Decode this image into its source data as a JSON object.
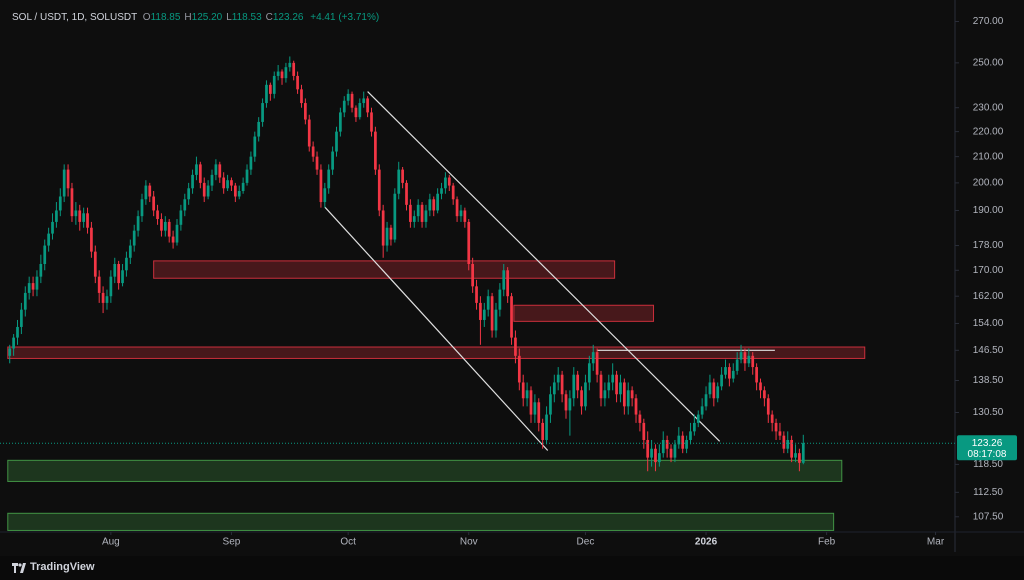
{
  "header": {
    "symbol": "SOL / USDT, 1D, SOLUSDT",
    "ohlc": [
      {
        "key": "O",
        "value": "118.85"
      },
      {
        "key": "H",
        "value": "125.20"
      },
      {
        "key": "L",
        "value": "118.53"
      },
      {
        "key": "C",
        "value": "123.26"
      }
    ],
    "change": "+4.41 (+3.71%)"
  },
  "footer": {
    "brand": "TradingView"
  },
  "chart_data": {
    "type": "candlestick",
    "log_scale": true,
    "up_color": "#089981",
    "down_color": "#f23645",
    "countdown": "08:17:08",
    "xlim": [
      -2.5,
      243
    ],
    "ylim": [
      104.5,
      281
    ],
    "xticks": [
      {
        "value": 26,
        "label": "Aug"
      },
      {
        "value": 57,
        "label": "Sep"
      },
      {
        "value": 87,
        "label": "Oct"
      },
      {
        "value": 118,
        "label": "Nov"
      },
      {
        "value": 148,
        "label": "Dec"
      },
      {
        "value": 179,
        "label": "2026"
      },
      {
        "value": 210,
        "label": "Feb"
      },
      {
        "value": 238,
        "label": "Mar"
      }
    ],
    "yticks": [
      {
        "value": 270,
        "label": "270.00"
      },
      {
        "value": 250,
        "label": "250.00"
      },
      {
        "value": 230,
        "label": "230.00"
      },
      {
        "value": 220,
        "label": "220.00"
      },
      {
        "value": 210,
        "label": "210.00"
      },
      {
        "value": 200,
        "label": "200.00"
      },
      {
        "value": 190,
        "label": "190.00"
      },
      {
        "value": 178,
        "label": "178.00"
      },
      {
        "value": 170,
        "label": "170.00"
      },
      {
        "value": 162,
        "label": "162.00"
      },
      {
        "value": 154,
        "label": "154.00"
      },
      {
        "value": 146.5,
        "label": "146.50"
      },
      {
        "value": 138.5,
        "label": "138.50"
      },
      {
        "value": 130.5,
        "label": "130.50"
      },
      {
        "value": 118.5,
        "label": "118.50"
      },
      {
        "value": 112.5,
        "label": "112.50"
      },
      {
        "value": 107.5,
        "label": "107.50"
      }
    ],
    "zones": [
      {
        "color": "#f23645",
        "from": [
          37,
          173
        ],
        "to": [
          155.5,
          167.5
        ]
      },
      {
        "color": "#f23645",
        "from": [
          129.6,
          159.3
        ],
        "to": [
          165.5,
          154.6
        ]
      },
      {
        "color": "#f23645",
        "from": [
          -0.5,
          147.4
        ],
        "to": [
          219.8,
          144.3
        ]
      },
      {
        "color": "#4caf50",
        "from": [
          -0.5,
          119.4
        ],
        "to": [
          213.9,
          114.8
        ]
      },
      {
        "color": "#4caf50",
        "from": [
          -0.5,
          108.2
        ],
        "to": [
          211.8,
          104.8
        ]
      }
    ],
    "lines": [
      {
        "color": "#e0e0e0",
        "from": [
          92,
          237
        ],
        "to": [
          182.5,
          123.7
        ]
      },
      {
        "color": "#e0e0e0",
        "from": [
          81,
          191.2
        ],
        "to": [
          138.3,
          121.6
        ]
      },
      {
        "color": "#e0e0e0",
        "from": [
          151,
          146.5
        ],
        "to": [
          196.7,
          146.5
        ]
      }
    ],
    "candles": [
      [
        145,
        148,
        143,
        147
      ],
      [
        147,
        151,
        145,
        150
      ],
      [
        150,
        155,
        148,
        153
      ],
      [
        153,
        160,
        151,
        158
      ],
      [
        158,
        165,
        156,
        163
      ],
      [
        163,
        168,
        161,
        166
      ],
      [
        166,
        168,
        162,
        164
      ],
      [
        164,
        170,
        162,
        168
      ],
      [
        168,
        175,
        166,
        172
      ],
      [
        172,
        180,
        170,
        178
      ],
      [
        178,
        184,
        176,
        182
      ],
      [
        182,
        189,
        180,
        186
      ],
      [
        186,
        193,
        184,
        190
      ],
      [
        190,
        198,
        188,
        195
      ],
      [
        195,
        207,
        193,
        205
      ],
      [
        205,
        207,
        195,
        198
      ],
      [
        198,
        200,
        186,
        188
      ],
      [
        188,
        193,
        185,
        190
      ],
      [
        190,
        192,
        183,
        186
      ],
      [
        186,
        191,
        184,
        189
      ],
      [
        189,
        191,
        182,
        184
      ],
      [
        184,
        186,
        174,
        176
      ],
      [
        176,
        178,
        166,
        168
      ],
      [
        168,
        170,
        160,
        163
      ],
      [
        163,
        165,
        157,
        160
      ],
      [
        160,
        164,
        158,
        162
      ],
      [
        162,
        170,
        160,
        168
      ],
      [
        168,
        174,
        166,
        172
      ],
      [
        172,
        173,
        164,
        166
      ],
      [
        166,
        172,
        165,
        170
      ],
      [
        170,
        176,
        168,
        174
      ],
      [
        174,
        180,
        172,
        178
      ],
      [
        178,
        185,
        176,
        183
      ],
      [
        183,
        190,
        181,
        188
      ],
      [
        188,
        196,
        186,
        194
      ],
      [
        194,
        201,
        192,
        199
      ],
      [
        199,
        200,
        193,
        195
      ],
      [
        195,
        197,
        188,
        190
      ],
      [
        190,
        192,
        185,
        187
      ],
      [
        187,
        189,
        181,
        183
      ],
      [
        183,
        188,
        181,
        186
      ],
      [
        186,
        187,
        179,
        181
      ],
      [
        181,
        183,
        177,
        179
      ],
      [
        179,
        187,
        178,
        185
      ],
      [
        185,
        192,
        183,
        190
      ],
      [
        190,
        196,
        188,
        194
      ],
      [
        194,
        200,
        192,
        198
      ],
      [
        198,
        205,
        196,
        203
      ],
      [
        203,
        210,
        201,
        207
      ],
      [
        207,
        208,
        198,
        200
      ],
      [
        200,
        202,
        193,
        195
      ],
      [
        195,
        201,
        194,
        199
      ],
      [
        199,
        205,
        197,
        203
      ],
      [
        203,
        209,
        201,
        207
      ],
      [
        207,
        208,
        200,
        202
      ],
      [
        202,
        204,
        196,
        198
      ],
      [
        198,
        203,
        197,
        201
      ],
      [
        201,
        202,
        197,
        199
      ],
      [
        199,
        200,
        193,
        195
      ],
      [
        195,
        199,
        194,
        197
      ],
      [
        197,
        202,
        196,
        200
      ],
      [
        200,
        207,
        199,
        205
      ],
      [
        205,
        212,
        203,
        210
      ],
      [
        210,
        220,
        208,
        218
      ],
      [
        218,
        226,
        216,
        224
      ],
      [
        224,
        234,
        222,
        232
      ],
      [
        232,
        242,
        230,
        240
      ],
      [
        240,
        241,
        233,
        236
      ],
      [
        236,
        246,
        234,
        244
      ],
      [
        244,
        249,
        242,
        246
      ],
      [
        246,
        247,
        240,
        243
      ],
      [
        243,
        250,
        241,
        248
      ],
      [
        248,
        253,
        246,
        250
      ],
      [
        250,
        251,
        242,
        244
      ],
      [
        244,
        246,
        236,
        238
      ],
      [
        238,
        240,
        230,
        232
      ],
      [
        232,
        234,
        223,
        225
      ],
      [
        225,
        227,
        212,
        214
      ],
      [
        214,
        216,
        208,
        210
      ],
      [
        210,
        212,
        203,
        205
      ],
      [
        205,
        207,
        191,
        193
      ],
      [
        193,
        200,
        191,
        198
      ],
      [
        198,
        207,
        196,
        205
      ],
      [
        205,
        214,
        203,
        212
      ],
      [
        212,
        222,
        210,
        220
      ],
      [
        220,
        230,
        218,
        228
      ],
      [
        228,
        235,
        226,
        233
      ],
      [
        233,
        238,
        231,
        236
      ],
      [
        236,
        237,
        228,
        230
      ],
      [
        230,
        231,
        224,
        226
      ],
      [
        226,
        234,
        225,
        232
      ],
      [
        232,
        237,
        230,
        234
      ],
      [
        234,
        235,
        226,
        228
      ],
      [
        228,
        230,
        218,
        220
      ],
      [
        220,
        222,
        203,
        205
      ],
      [
        205,
        207,
        188,
        190
      ],
      [
        190,
        192,
        174,
        178
      ],
      [
        178,
        186,
        176,
        184
      ],
      [
        184,
        185,
        178,
        180
      ],
      [
        180,
        198,
        179,
        196
      ],
      [
        196,
        208,
        194,
        205
      ],
      [
        205,
        206,
        198,
        200
      ],
      [
        200,
        201,
        190,
        192
      ],
      [
        192,
        194,
        184,
        186
      ],
      [
        186,
        190,
        184,
        188
      ],
      [
        188,
        194,
        186,
        192
      ],
      [
        192,
        193,
        184,
        186
      ],
      [
        186,
        192,
        184,
        190
      ],
      [
        190,
        196,
        188,
        194
      ],
      [
        194,
        195,
        188,
        190
      ],
      [
        190,
        198,
        189,
        196
      ],
      [
        196,
        200,
        194,
        198
      ],
      [
        198,
        204,
        196,
        202
      ],
      [
        202,
        203,
        197,
        199
      ],
      [
        199,
        200,
        192,
        194
      ],
      [
        194,
        195,
        186,
        188
      ],
      [
        188,
        192,
        186,
        190
      ],
      [
        190,
        191,
        184,
        186
      ],
      [
        186,
        187,
        170,
        172
      ],
      [
        172,
        174,
        163,
        165
      ],
      [
        165,
        167,
        158,
        160
      ],
      [
        160,
        162,
        148,
        155
      ],
      [
        155,
        160,
        153,
        158
      ],
      [
        158,
        164,
        156,
        162
      ],
      [
        162,
        163,
        150,
        152
      ],
      [
        152,
        160,
        150,
        158
      ],
      [
        158,
        166,
        156,
        164
      ],
      [
        164,
        172,
        162,
        170
      ],
      [
        170,
        171,
        160,
        162
      ],
      [
        162,
        163,
        148,
        150
      ],
      [
        150,
        152,
        143,
        145
      ],
      [
        145,
        147,
        136,
        138
      ],
      [
        138,
        140,
        132,
        134
      ],
      [
        134,
        138,
        132,
        136
      ],
      [
        136,
        137,
        128,
        130
      ],
      [
        130,
        135,
        128,
        133
      ],
      [
        133,
        134,
        126,
        128
      ],
      [
        128,
        129,
        122,
        124
      ],
      [
        124,
        132,
        123,
        130
      ],
      [
        130,
        137,
        128,
        135
      ],
      [
        135,
        140,
        133,
        138
      ],
      [
        138,
        142,
        136,
        140
      ],
      [
        140,
        141,
        133,
        135
      ],
      [
        135,
        136,
        129,
        131
      ],
      [
        131,
        136,
        125,
        134
      ],
      [
        134,
        142,
        132,
        140
      ],
      [
        140,
        141,
        134,
        136
      ],
      [
        136,
        137,
        130,
        132
      ],
      [
        132,
        140,
        131,
        138
      ],
      [
        138,
        145,
        136,
        143
      ],
      [
        143,
        148,
        141,
        146
      ],
      [
        146,
        147,
        138,
        140
      ],
      [
        140,
        141,
        132,
        134
      ],
      [
        134,
        138,
        132,
        136
      ],
      [
        136,
        140,
        134,
        138
      ],
      [
        138,
        143,
        136,
        140
      ],
      [
        140,
        141,
        133,
        135
      ],
      [
        135,
        140,
        133,
        138
      ],
      [
        138,
        139,
        130,
        132
      ],
      [
        132,
        138,
        130,
        136
      ],
      [
        136,
        137,
        132,
        134
      ],
      [
        134,
        135,
        128,
        130
      ],
      [
        130,
        131,
        126,
        128
      ],
      [
        128,
        129,
        122,
        124
      ],
      [
        124,
        126,
        117,
        120
      ],
      [
        120,
        124,
        118,
        122
      ],
      [
        122,
        123,
        117,
        119
      ],
      [
        119,
        123,
        118,
        121
      ],
      [
        121,
        126,
        120,
        124
      ],
      [
        124,
        125,
        120,
        122
      ],
      [
        122,
        123,
        119,
        120
      ],
      [
        120,
        124,
        119,
        123
      ],
      [
        123,
        127,
        122,
        125
      ],
      [
        125,
        126,
        121,
        122
      ],
      [
        122,
        125,
        121,
        124
      ],
      [
        124,
        128,
        123,
        126
      ],
      [
        126,
        130,
        125,
        128
      ],
      [
        128,
        131,
        127,
        130
      ],
      [
        130,
        134,
        129,
        132
      ],
      [
        132,
        137,
        131,
        135
      ],
      [
        135,
        140,
        134,
        138
      ],
      [
        138,
        139,
        132,
        134
      ],
      [
        134,
        138,
        133,
        137
      ],
      [
        137,
        142,
        136,
        140
      ],
      [
        140,
        144,
        139,
        142
      ],
      [
        142,
        143,
        137,
        139
      ],
      [
        139,
        143,
        138,
        141
      ],
      [
        141,
        146,
        140,
        144
      ],
      [
        144,
        148,
        143,
        146
      ],
      [
        146,
        147,
        141,
        143
      ],
      [
        143,
        147,
        142,
        145
      ],
      [
        145,
        146,
        140,
        142
      ],
      [
        142,
        143,
        136,
        138
      ],
      [
        138,
        139,
        134,
        136
      ],
      [
        136,
        137,
        132,
        134
      ],
      [
        134,
        135,
        128,
        130
      ],
      [
        130,
        131,
        126,
        128
      ],
      [
        128,
        129,
        124,
        126
      ],
      [
        126,
        128,
        124,
        125
      ],
      [
        125,
        126,
        121,
        122
      ],
      [
        122,
        126,
        121,
        124
      ],
      [
        124,
        125,
        119,
        120
      ],
      [
        120,
        123,
        119,
        121
      ],
      [
        121,
        122,
        117,
        118.85
      ],
      [
        118.85,
        125.2,
        118.53,
        123.26
      ]
    ]
  }
}
